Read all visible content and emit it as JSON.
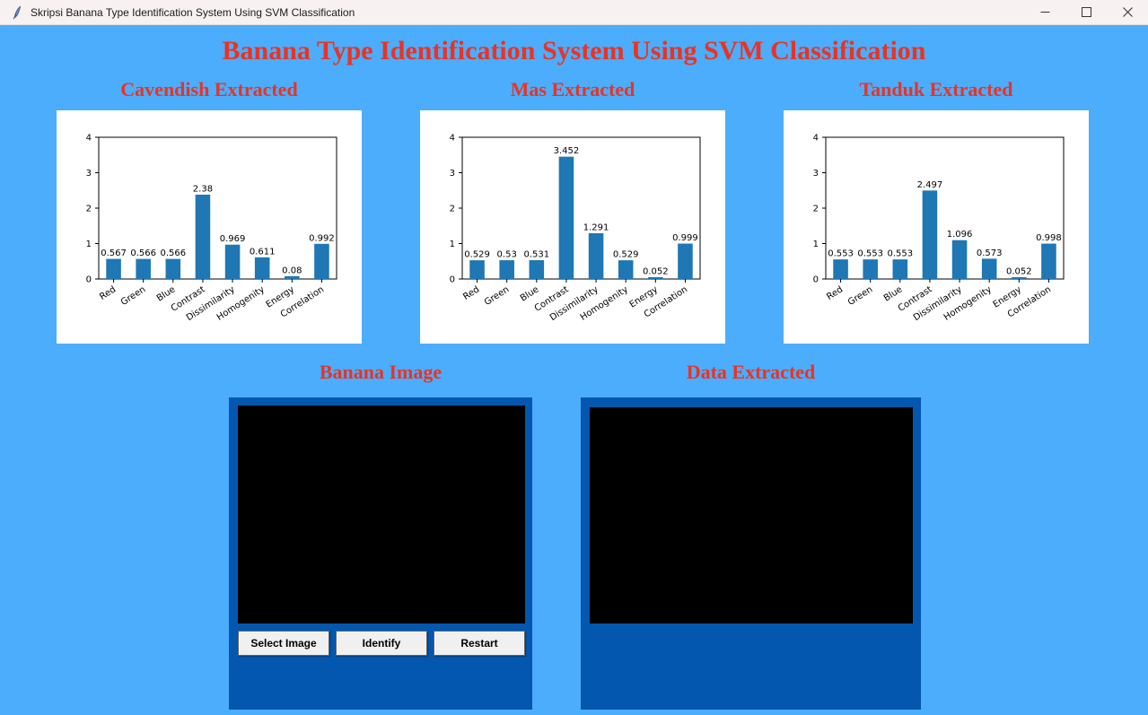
{
  "window": {
    "icon": "python-feather-icon",
    "title": "Skripsi Banana Type Identification System Using SVM Classification",
    "controls": [
      "minimize",
      "maximize",
      "close"
    ]
  },
  "app": {
    "title": "Banana Type Identification System Using SVM Classification",
    "colors": {
      "accent_red": "#eb3223",
      "background_blue": "#4badfc",
      "panel_blue": "#0457ae",
      "bar_blue": "#1f77b4"
    }
  },
  "chart_data": [
    {
      "type": "bar",
      "title": "Cavendish Extracted",
      "categories": [
        "Red",
        "Green",
        "Blue",
        "Contrast",
        "Dissimilarity",
        "Homogenity",
        "Energy",
        "Correlation"
      ],
      "values": [
        0.567,
        0.566,
        0.566,
        2.38,
        0.969,
        0.611,
        0.08,
        0.992
      ],
      "ylim": [
        0,
        4
      ],
      "yticks": [
        0,
        1,
        2,
        3,
        4
      ],
      "bar_color": "#1f77b4",
      "grid": false,
      "value_labels": true
    },
    {
      "type": "bar",
      "title": "Mas Extracted",
      "categories": [
        "Red",
        "Green",
        "Blue",
        "Contrast",
        "Dissimilarity",
        "Homogenity",
        "Energy",
        "Correlation"
      ],
      "values": [
        0.529,
        0.53,
        0.531,
        3.452,
        1.291,
        0.529,
        0.052,
        0.999
      ],
      "ylim": [
        0,
        4
      ],
      "yticks": [
        0,
        1,
        2,
        3,
        4
      ],
      "bar_color": "#1f77b4",
      "grid": false,
      "value_labels": true
    },
    {
      "type": "bar",
      "title": "Tanduk Extracted",
      "categories": [
        "Red",
        "Green",
        "Blue",
        "Contrast",
        "Dissimilarity",
        "Homogenity",
        "Energy",
        "Correlation"
      ],
      "values": [
        0.553,
        0.553,
        0.553,
        2.497,
        1.096,
        0.573,
        0.052,
        0.998
      ],
      "ylim": [
        0,
        4
      ],
      "yticks": [
        0,
        1,
        2,
        3,
        4
      ],
      "bar_color": "#1f77b4",
      "grid": false,
      "value_labels": true
    }
  ],
  "panels": {
    "image": {
      "title": "Banana Image",
      "display": "black-image-placeholder",
      "buttons": [
        {
          "label": "Select Image"
        },
        {
          "label": "Identify"
        },
        {
          "label": "Restart"
        }
      ]
    },
    "data": {
      "title": "Data Extracted",
      "display": "black-image-placeholder"
    }
  }
}
